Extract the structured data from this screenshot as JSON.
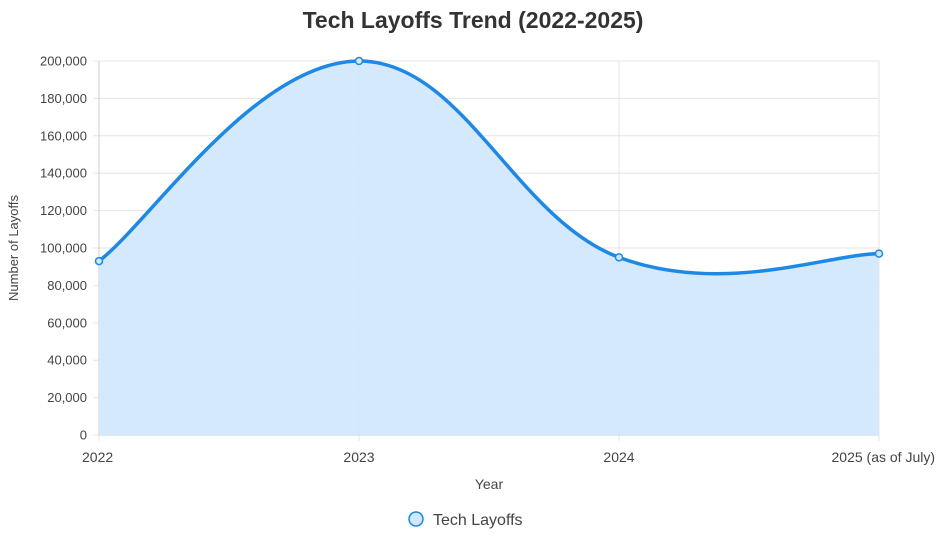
{
  "chart_data": {
    "type": "area",
    "title": "Tech Layoffs Trend (2022-2025)",
    "xlabel": "Year",
    "ylabel": "Number of Layoffs",
    "categories": [
      "2022",
      "2023",
      "2024",
      "2025 (as of July)"
    ],
    "series": [
      {
        "name": "Tech Layoffs",
        "values": [
          93000,
          200000,
          95000,
          97000
        ]
      }
    ],
    "ylim": [
      0,
      200000
    ],
    "yticks": [
      0,
      20000,
      40000,
      60000,
      80000,
      100000,
      120000,
      140000,
      160000,
      180000,
      200000
    ],
    "ytick_labels": [
      "0",
      "20,000",
      "40,000",
      "60,000",
      "80,000",
      "100,000",
      "120,000",
      "140,000",
      "160,000",
      "180,000",
      "200,000"
    ],
    "grid": true,
    "legend_position": "bottom",
    "colors": {
      "line": "#1e88e5",
      "fill": "#d0e7fc",
      "grid": "#e4e4e4",
      "axis_text": "#444444",
      "title": "#333333"
    }
  }
}
